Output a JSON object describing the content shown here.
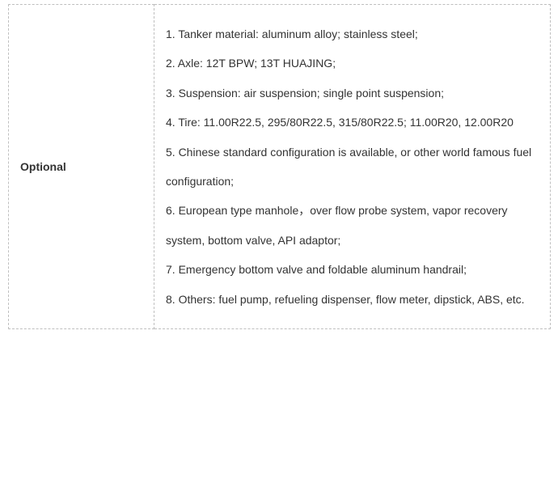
{
  "spec": {
    "label": "Optional",
    "items": [
      "1.  Tanker material: aluminum alloy; stainless steel;",
      "2.  Axle: 12T BPW; 13T HUAJING;",
      "3.  Suspension: air suspension; single point suspension;",
      "4.  Tire: 11.00R22.5, 295/80R22.5, 315/80R22.5; 11.00R20, 12.00R20",
      "5.  Chinese standard configuration is available, or other world famous fuel configuration;",
      "6.  European type manhole，over flow probe system, vapor recovery system, bottom valve, API adaptor;",
      "7.  Emergency bottom valve and foldable aluminum handrail;",
      "8.  Others: fuel pump, refueling dispenser, flow meter, dipstick, ABS, etc."
    ]
  }
}
